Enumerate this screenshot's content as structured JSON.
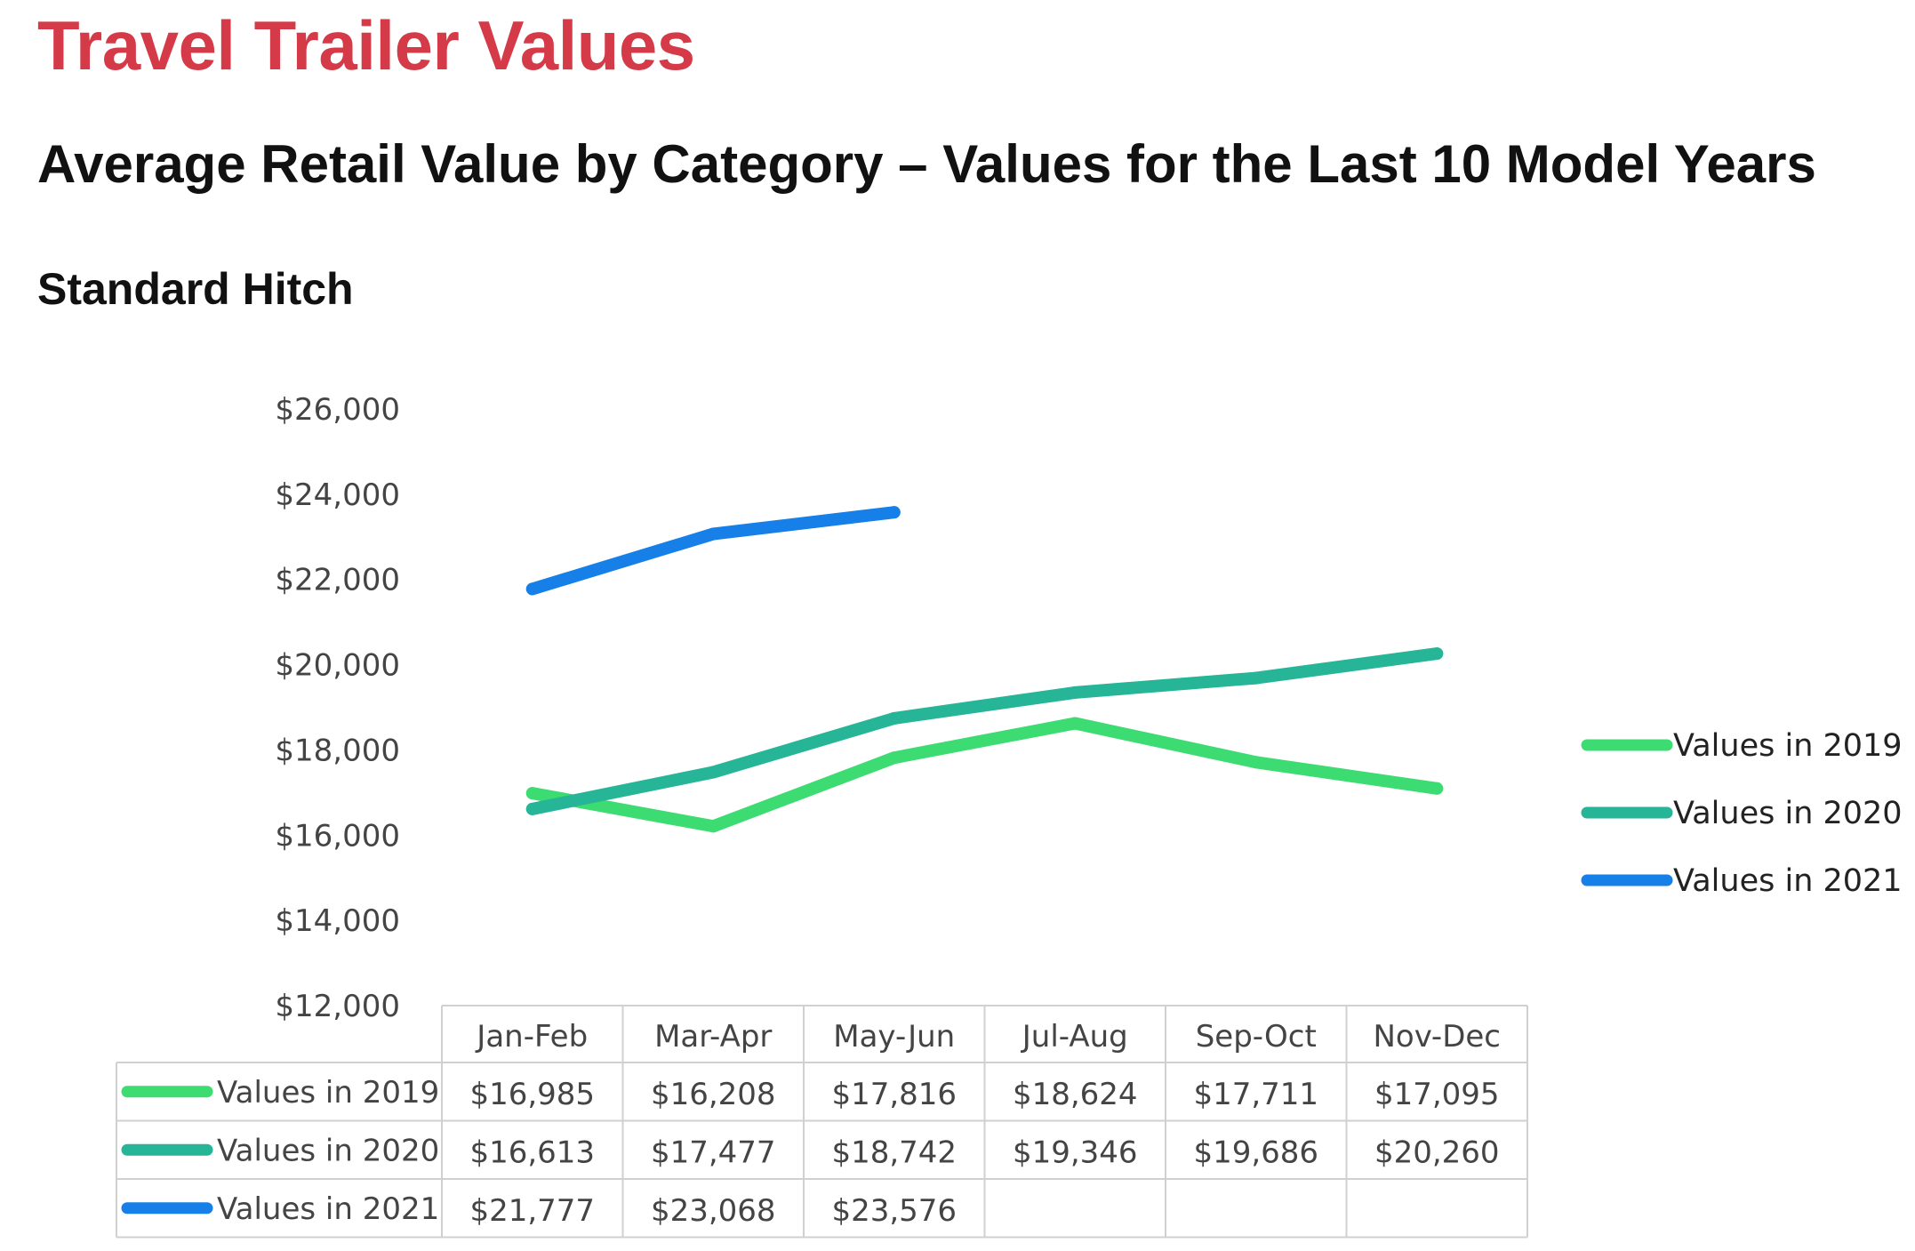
{
  "header": {
    "title": "Travel Trailer Values",
    "subtitle": "Average Retail Value by Category – Values for the Last 10 Model Years",
    "section": "Standard Hitch"
  },
  "chart_data": {
    "type": "line",
    "title": "",
    "xlabel": "",
    "ylabel": "",
    "categories": [
      "Jan-Feb",
      "Mar-Apr",
      "May-Jun",
      "Jul-Aug",
      "Sep-Oct",
      "Nov-Dec"
    ],
    "ylim": [
      12000,
      26000
    ],
    "yticks": [
      12000,
      14000,
      16000,
      18000,
      20000,
      22000,
      24000,
      26000
    ],
    "ytick_labels": [
      "$12,000",
      "$14,000",
      "$16,000",
      "$18,000",
      "$20,000",
      "$22,000",
      "$24,000",
      "$26,000"
    ],
    "grid": false,
    "legend_position": "right",
    "data_table": true,
    "series": [
      {
        "name": "Values in 2019",
        "color": "#3ddc73",
        "values": [
          16985,
          16208,
          17816,
          18624,
          17711,
          17095
        ],
        "labels": [
          "$16,985",
          "$16,208",
          "$17,816",
          "$18,624",
          "$17,711",
          "$17,095"
        ]
      },
      {
        "name": "Values in 2020",
        "color": "#27b598",
        "values": [
          16613,
          17477,
          18742,
          19346,
          19686,
          20260
        ],
        "labels": [
          "$16,613",
          "$17,477",
          "$18,742",
          "$19,346",
          "$19,686",
          "$20,260"
        ]
      },
      {
        "name": "Values in 2021",
        "color": "#1680e8",
        "values": [
          21777,
          23068,
          23576,
          null,
          null,
          null
        ],
        "labels": [
          "$21,777",
          "$23,068",
          "$23,576",
          "",
          "",
          ""
        ]
      }
    ]
  }
}
